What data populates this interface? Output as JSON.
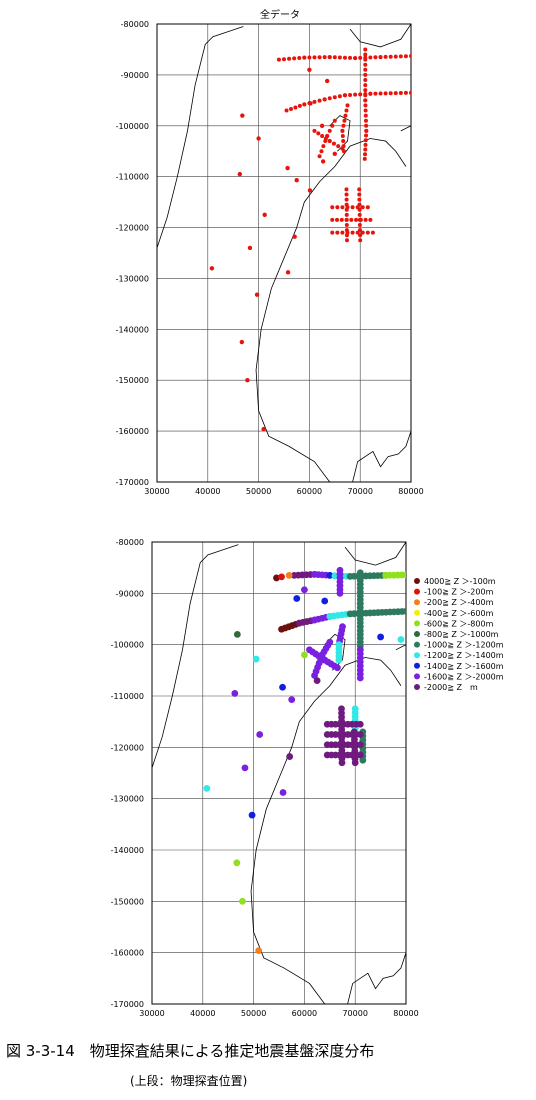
{
  "caption": "図 3-3-14　物理探査結果による推定地震基盤深度分布",
  "subcaption": "(上段：物理探査位置)",
  "chart_data": [
    {
      "type": "scatter",
      "title": "全データ",
      "xlim": [
        30000,
        80000
      ],
      "ylim": [
        -170000,
        -80000
      ],
      "x_ticks": [
        "30000",
        "40000",
        "50000",
        "60000",
        "70000",
        "80000"
      ],
      "y_ticks": [
        "-80000",
        "-90000",
        "-100000",
        "-110000",
        "-120000",
        "-130000",
        "-140000",
        "-150000",
        "-160000",
        "-170000"
      ],
      "grid": true,
      "color": "#e8140c",
      "points": [
        [
          46800,
          -98000
        ],
        [
          50000,
          -102500
        ],
        [
          46300,
          -109500
        ],
        [
          55700,
          -108300
        ],
        [
          57500,
          -110700
        ],
        [
          60100,
          -112700
        ],
        [
          62700,
          -107000
        ],
        [
          51200,
          -117500
        ],
        [
          57100,
          -121800
        ],
        [
          48300,
          -124000
        ],
        [
          40800,
          -128000
        ],
        [
          55800,
          -128800
        ],
        [
          49700,
          -133200
        ],
        [
          46700,
          -142500
        ],
        [
          47800,
          -150000
        ],
        [
          51000,
          -159600
        ],
        [
          60000,
          -89000
        ],
        [
          63500,
          -91200
        ],
        [
          60200,
          -95600
        ],
        [
          62500,
          -100000
        ],
        [
          65000,
          -105500
        ]
      ],
      "lines": [
        [
          [
            54000,
            -87000
          ],
          [
            59000,
            -86600
          ],
          [
            64000,
            -86500
          ],
          [
            69000,
            -86700
          ],
          [
            74000,
            -86500
          ],
          [
            80000,
            -86300
          ]
        ],
        [
          [
            55500,
            -97000
          ],
          [
            59000,
            -95800
          ],
          [
            63000,
            -94800
          ],
          [
            67000,
            -94000
          ],
          [
            72000,
            -93700
          ],
          [
            80000,
            -93500
          ]
        ],
        [
          [
            71000,
            -85000
          ],
          [
            71000,
            -95000
          ],
          [
            71200,
            -101000
          ],
          [
            70900,
            -106500
          ]
        ],
        [
          [
            67500,
            -96000
          ],
          [
            66500,
            -101000
          ],
          [
            66800,
            -105000
          ]
        ],
        [
          [
            61000,
            -101000
          ],
          [
            64000,
            -103000
          ],
          [
            66500,
            -104500
          ]
        ],
        [
          [
            62000,
            -106000
          ],
          [
            63500,
            -102000
          ],
          [
            65000,
            -99000
          ]
        ],
        [
          [
            67300,
            -112500
          ],
          [
            67400,
            -122500
          ]
        ],
        [
          [
            69800,
            -112500
          ],
          [
            70000,
            -122500
          ]
        ],
        [
          [
            64500,
            -116000
          ],
          [
            71500,
            -116000
          ]
        ],
        [
          [
            64500,
            -118500
          ],
          [
            72000,
            -118500
          ]
        ],
        [
          [
            64500,
            -121000
          ],
          [
            72500,
            -121000
          ]
        ]
      ]
    },
    {
      "type": "scatter",
      "title": "",
      "xlim": [
        30000,
        80000
      ],
      "ylim": [
        -170000,
        -80000
      ],
      "x_ticks": [
        "30000",
        "40000",
        "50000",
        "60000",
        "70000",
        "80000"
      ],
      "y_ticks": [
        "-80000",
        "-90000",
        "-100000",
        "-110000",
        "-120000",
        "-130000",
        "-140000",
        "-150000",
        "-160000",
        "-170000"
      ],
      "grid": true,
      "legend_position": "right",
      "legend": [
        {
          "label": "4000≧ Z ＞-100m",
          "color": "#6b1010"
        },
        {
          "label": "-100≧ Z ＞-200m",
          "color": "#e01010"
        },
        {
          "label": "-200≧ Z ＞-400m",
          "color": "#f08020"
        },
        {
          "label": "-400≧ Z ＞-600m",
          "color": "#f0f010"
        },
        {
          "label": "-600≧ Z ＞-800m",
          "color": "#90e020"
        },
        {
          "label": "-800≧ Z ＞-1000m",
          "color": "#2e6b3a"
        },
        {
          "label": "-1000≧ Z ＞-1200m",
          "color": "#2e7a60"
        },
        {
          "label": "-1200≧ Z ＞-1400m",
          "color": "#30e8e8"
        },
        {
          "label": "-1400≧ Z ＞-1600m",
          "color": "#1020e0"
        },
        {
          "label": "-1600≧ Z ＞-2000m",
          "color": "#7a20e0"
        },
        {
          "label": "-2000≧ Z　m",
          "color": "#701a80"
        }
      ],
      "points": [
        {
          "x": 46800,
          "y": -98000,
          "c": "#2e6b3a"
        },
        {
          "x": 50500,
          "y": -102800,
          "c": "#30e8e8"
        },
        {
          "x": 46300,
          "y": -109500,
          "c": "#7a20e0"
        },
        {
          "x": 55700,
          "y": -108300,
          "c": "#1020e0"
        },
        {
          "x": 57500,
          "y": -110700,
          "c": "#7a20e0"
        },
        {
          "x": 62500,
          "y": -107000,
          "c": "#701a80"
        },
        {
          "x": 51200,
          "y": -117500,
          "c": "#7a20e0"
        },
        {
          "x": 57100,
          "y": -121800,
          "c": "#701a80"
        },
        {
          "x": 48300,
          "y": -124000,
          "c": "#7a20e0"
        },
        {
          "x": 40800,
          "y": -128000,
          "c": "#30e8e8"
        },
        {
          "x": 55800,
          "y": -128800,
          "c": "#7a20e0"
        },
        {
          "x": 49700,
          "y": -133200,
          "c": "#1020e0"
        },
        {
          "x": 46700,
          "y": -142500,
          "c": "#90e020"
        },
        {
          "x": 47800,
          "y": -150000,
          "c": "#90e020"
        },
        {
          "x": 51000,
          "y": -159600,
          "c": "#f08020"
        },
        {
          "x": 60000,
          "y": -89300,
          "c": "#7a20e0"
        },
        {
          "x": 64000,
          "y": -91500,
          "c": "#1020e0"
        },
        {
          "x": 60000,
          "y": -102000,
          "c": "#90e020"
        },
        {
          "x": 75000,
          "y": -98500,
          "c": "#1020e0"
        },
        {
          "x": 79000,
          "y": -99000,
          "c": "#30e8e8"
        },
        {
          "x": 54500,
          "y": -87000,
          "c": "#6b1010"
        },
        {
          "x": 55500,
          "y": -86800,
          "c": "#e01010"
        },
        {
          "x": 57000,
          "y": -86500,
          "c": "#f08020"
        },
        {
          "x": 58500,
          "y": -91000,
          "c": "#1020e0"
        }
      ],
      "lines": [
        {
          "c": "#701a80",
          "pts": [
            [
              58000,
              -86500
            ],
            [
              62000,
              -86300
            ]
          ]
        },
        {
          "c": "#7a20e0",
          "pts": [
            [
              62000,
              -86300
            ],
            [
              65000,
              -86500
            ]
          ]
        },
        {
          "c": "#1020e0",
          "pts": [
            [
              65000,
              -86500
            ],
            [
              66000,
              -86600
            ]
          ]
        },
        {
          "c": "#30e8e8",
          "pts": [
            [
              66000,
              -86600
            ],
            [
              69000,
              -86700
            ]
          ]
        },
        {
          "c": "#2e7a60",
          "pts": [
            [
              69000,
              -86700
            ],
            [
              76000,
              -86500
            ]
          ]
        },
        {
          "c": "#90e020",
          "pts": [
            [
              76000,
              -86500
            ],
            [
              80000,
              -86400
            ]
          ]
        },
        {
          "c": "#6b1010",
          "pts": [
            [
              55500,
              -97000
            ],
            [
              59000,
              -95800
            ]
          ]
        },
        {
          "c": "#701a80",
          "pts": [
            [
              59000,
              -95800
            ],
            [
              62000,
              -95200
            ]
          ]
        },
        {
          "c": "#7a20e0",
          "pts": [
            [
              62000,
              -95200
            ],
            [
              65000,
              -94500
            ]
          ]
        },
        {
          "c": "#30e8e8",
          "pts": [
            [
              65000,
              -94500
            ],
            [
              69000,
              -94000
            ]
          ]
        },
        {
          "c": "#2e7a60",
          "pts": [
            [
              69000,
              -94000
            ],
            [
              80000,
              -93500
            ]
          ]
        },
        {
          "c": "#7a20e0",
          "pts": [
            [
              67000,
              -85500
            ],
            [
              67000,
              -90000
            ]
          ]
        },
        {
          "c": "#2e7a60",
          "pts": [
            [
              71000,
              -86000
            ],
            [
              71000,
              -92000
            ]
          ]
        },
        {
          "c": "#2e7a60",
          "pts": [
            [
              71000,
              -92000
            ],
            [
              71000,
              -101000
            ]
          ]
        },
        {
          "c": "#7a20e0",
          "pts": [
            [
              71000,
              -101000
            ],
            [
              71000,
              -106500
            ]
          ]
        },
        {
          "c": "#7a20e0",
          "pts": [
            [
              67500,
              -96500
            ],
            [
              66800,
              -100000
            ]
          ]
        },
        {
          "c": "#30e8e8",
          "pts": [
            [
              66800,
              -100000
            ],
            [
              66800,
              -103000
            ]
          ]
        },
        {
          "c": "#7a20e0",
          "pts": [
            [
              61000,
              -101000
            ],
            [
              64000,
              -103000
            ],
            [
              66500,
              -104500
            ]
          ]
        },
        {
          "c": "#7a20e0",
          "pts": [
            [
              62000,
              -106000
            ],
            [
              63500,
              -102000
            ],
            [
              65000,
              -99500
            ]
          ]
        },
        {
          "c": "#30e8e8",
          "pts": [
            [
              70000,
              -112500
            ],
            [
              70000,
              -117000
            ]
          ]
        },
        {
          "c": "#2e7a60",
          "pts": [
            [
              71500,
              -117000
            ],
            [
              71500,
              -122500
            ]
          ]
        },
        {
          "c": "#701a80",
          "pts": [
            [
              67300,
              -112500
            ],
            [
              67400,
              -123000
            ]
          ]
        },
        {
          "c": "#701a80",
          "pts": [
            [
              69800,
              -117000
            ],
            [
              70000,
              -123000
            ]
          ]
        },
        {
          "c": "#701a80",
          "pts": [
            [
              64500,
              -115500
            ],
            [
              71000,
              -115500
            ]
          ]
        },
        {
          "c": "#701a80",
          "pts": [
            [
              64500,
              -117500
            ],
            [
              71000,
              -117500
            ]
          ]
        },
        {
          "c": "#701a80",
          "pts": [
            [
              64500,
              -119500
            ],
            [
              71000,
              -119500
            ]
          ]
        },
        {
          "c": "#701a80",
          "pts": [
            [
              64500,
              -121500
            ],
            [
              71000,
              -121500
            ]
          ]
        }
      ]
    }
  ]
}
